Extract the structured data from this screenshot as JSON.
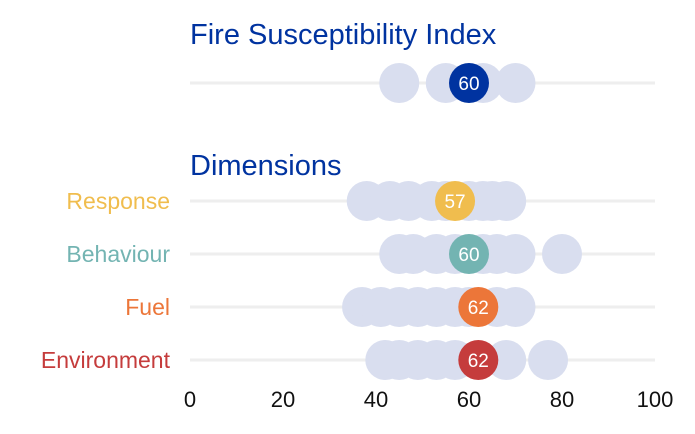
{
  "chart_data": {
    "type": "scatter",
    "xlim": [
      0,
      100
    ],
    "xticks": [
      0,
      20,
      40,
      60,
      80,
      100
    ],
    "grid": false,
    "highlight_color": "#0033a0",
    "background_dot_color": "#d9deef",
    "index": {
      "title": "Fire Susceptibility Index",
      "highlight_value": 60,
      "highlight_label": "60",
      "color": "#0033a0",
      "background_values": [
        45,
        55,
        63,
        70
      ]
    },
    "dimensions_title": "Dimensions",
    "dimensions": [
      {
        "name": "Response",
        "highlight_value": 57,
        "highlight_label": "57",
        "color": "#f0bd4e",
        "background_values": [
          38,
          43,
          47,
          52,
          55,
          60,
          63,
          65,
          68
        ]
      },
      {
        "name": "Behaviour",
        "highlight_value": 60,
        "highlight_label": "60",
        "color": "#73b4b2",
        "background_values": [
          45,
          48,
          53,
          57,
          63,
          66,
          70,
          80
        ]
      },
      {
        "name": "Fuel",
        "highlight_value": 62,
        "highlight_label": "62",
        "color": "#ec7639",
        "background_values": [
          37,
          41,
          45,
          49,
          53,
          57,
          60,
          66,
          70
        ]
      },
      {
        "name": "Environment",
        "highlight_value": 62,
        "highlight_label": "62",
        "color": "#c53c3c",
        "background_values": [
          42,
          45,
          49,
          53,
          57,
          68,
          77
        ]
      }
    ]
  }
}
